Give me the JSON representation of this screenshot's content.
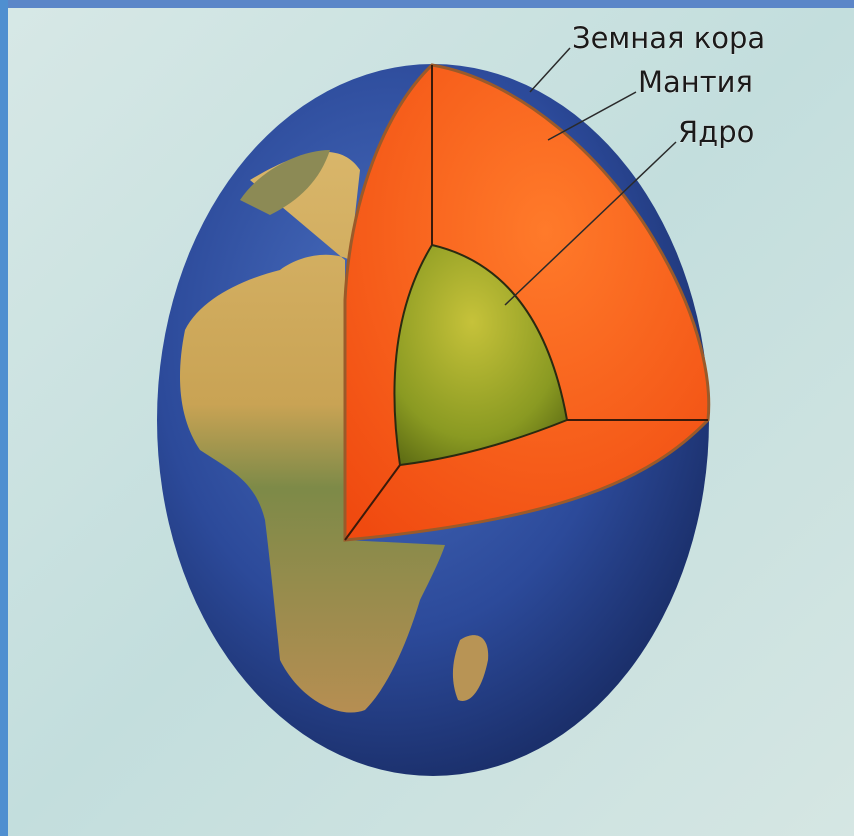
{
  "labels": [
    "Земная кора",
    "Мантия",
    "Ядро"
  ]
}
